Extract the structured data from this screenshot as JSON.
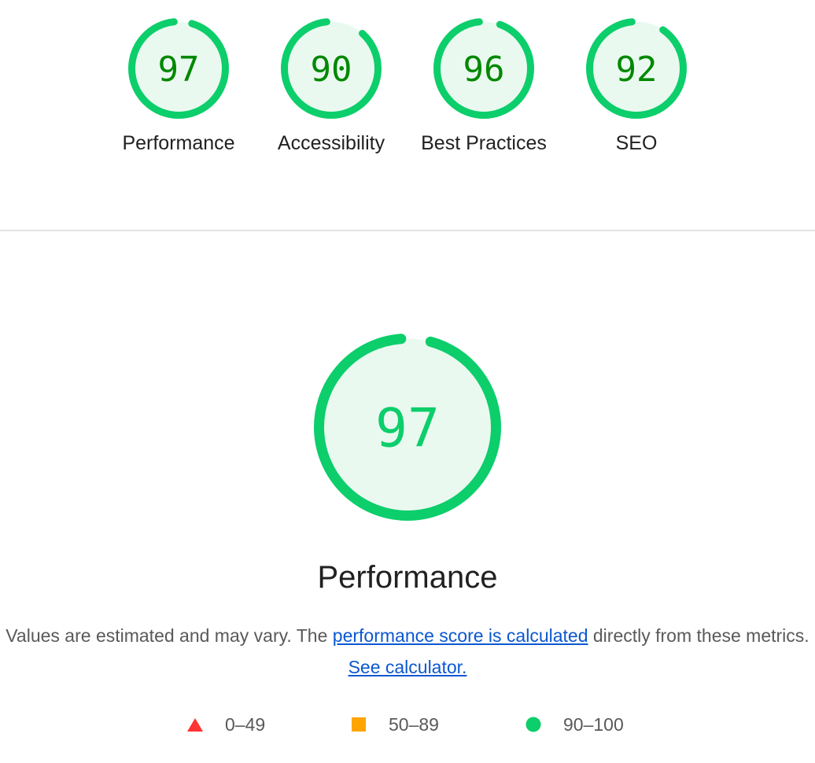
{
  "colors": {
    "pass": "#0cce6b",
    "pass_text": "#008800",
    "pass_fill": "#eaf9f0",
    "average": "#ffa400",
    "fail": "#ff3333"
  },
  "categories": [
    {
      "score": 97,
      "label": "Performance"
    },
    {
      "score": 90,
      "label": "Accessibility"
    },
    {
      "score": 96,
      "label": "Best Practices"
    },
    {
      "score": 92,
      "label": "SEO"
    }
  ],
  "detail": {
    "score": 97,
    "title": "Performance",
    "desc_part1": "Values are estimated and may vary. The ",
    "desc_link1": "performance score is calculated",
    "desc_part2": " directly from these metrics. ",
    "desc_link2": "See calculator."
  },
  "legend": [
    {
      "icon": "triangle-icon",
      "range": "0–49"
    },
    {
      "icon": "square-icon",
      "range": "50–89"
    },
    {
      "icon": "circle-icon",
      "range": "90–100"
    }
  ]
}
